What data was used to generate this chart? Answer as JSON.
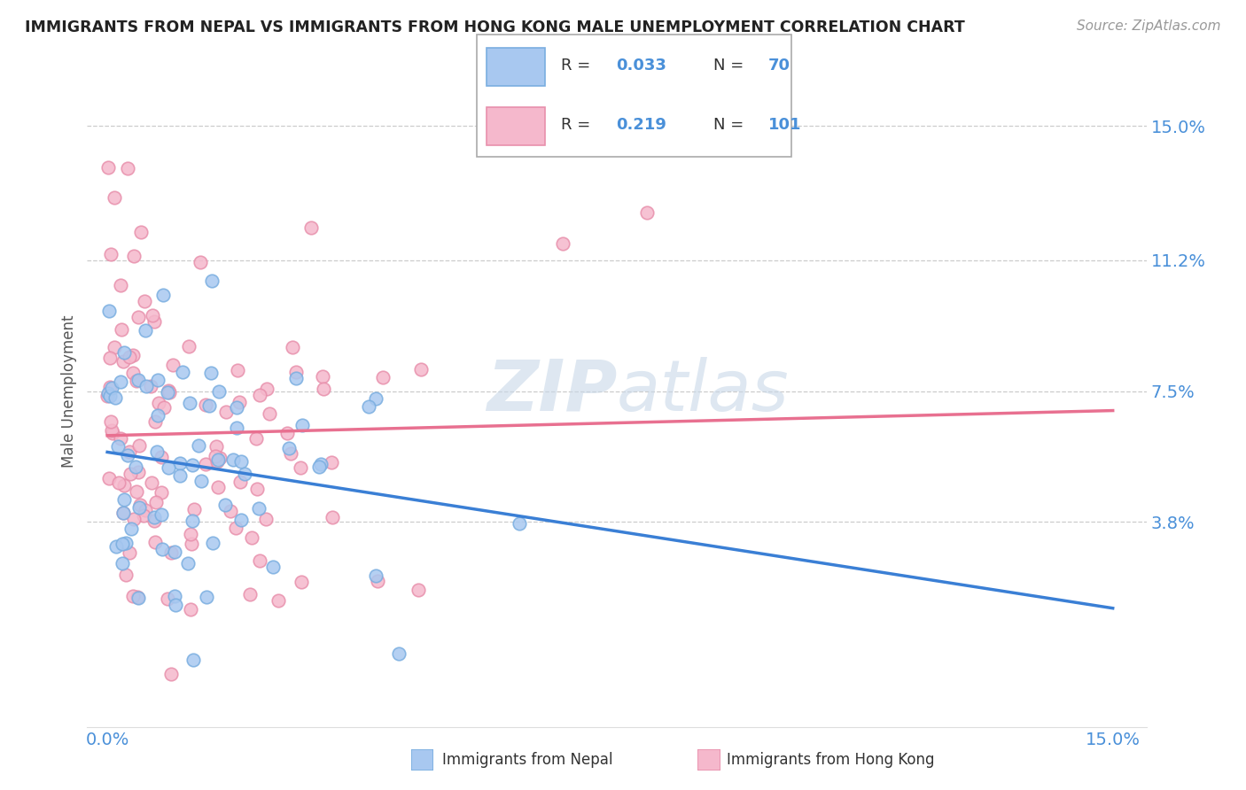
{
  "title": "IMMIGRANTS FROM NEPAL VS IMMIGRANTS FROM HONG KONG MALE UNEMPLOYMENT CORRELATION CHART",
  "source": "Source: ZipAtlas.com",
  "ylabel": "Male Unemployment",
  "color_nepal": "#a8c8f0",
  "color_nepal_edge": "#7aaee0",
  "color_hongkong": "#f5b8cc",
  "color_hongkong_edge": "#e890ac",
  "color_nepal_line": "#3a7fd5",
  "color_hongkong_line": "#e87090",
  "color_tick_labels": "#4a90d9",
  "color_grid": "#cccccc",
  "watermark_color": "#c8d8e8",
  "legend_r1": "0.033",
  "legend_n1": "70",
  "legend_r2": "0.219",
  "legend_n2": "101",
  "ytick_vals": [
    0.038,
    0.075,
    0.112,
    0.15
  ],
  "ytick_labels": [
    "3.8%",
    "7.5%",
    "11.2%",
    "15.0%"
  ],
  "xtick_vals": [
    0.0,
    0.15
  ],
  "xtick_labels": [
    "0.0%",
    "15.0%"
  ],
  "xlim": [
    -0.003,
    0.155
  ],
  "ylim": [
    -0.02,
    0.17
  ]
}
